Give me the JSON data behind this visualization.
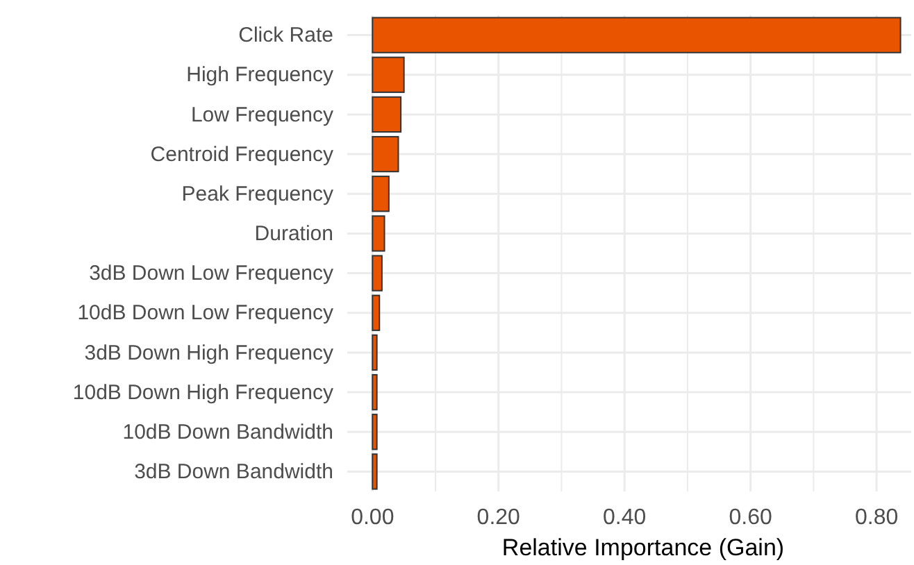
{
  "chart_data": {
    "type": "bar",
    "orientation": "horizontal",
    "xlabel": "Relative Importance (Gain)",
    "categories": [
      "Click Rate",
      "High Frequency",
      "Low Frequency",
      "Centroid Frequency",
      "Peak Frequency",
      "Duration",
      "3dB Down Low Frequency",
      "10dB Down Low Frequency",
      "3dB Down High Frequency",
      "10dB Down High Frequency",
      "10dB Down Bandwidth",
      "3dB Down Bandwidth"
    ],
    "values": [
      0.838,
      0.05,
      0.045,
      0.041,
      0.026,
      0.019,
      0.015,
      0.011,
      0.007,
      0.007,
      0.007,
      0.007
    ],
    "color": "#e85400",
    "xlim": [
      -0.04,
      0.855
    ],
    "xticks": [
      {
        "value": 0,
        "label": "0.00"
      },
      {
        "value": 0.1,
        "label": null
      },
      {
        "value": 0.2,
        "label": "0.20"
      },
      {
        "value": 0.3,
        "label": null
      },
      {
        "value": 0.4,
        "label": "0.40"
      },
      {
        "value": 0.5,
        "label": null
      },
      {
        "value": 0.6,
        "label": "0.60"
      },
      {
        "value": 0.7,
        "label": null
      },
      {
        "value": 0.8,
        "label": "0.80"
      }
    ],
    "grid": true
  }
}
